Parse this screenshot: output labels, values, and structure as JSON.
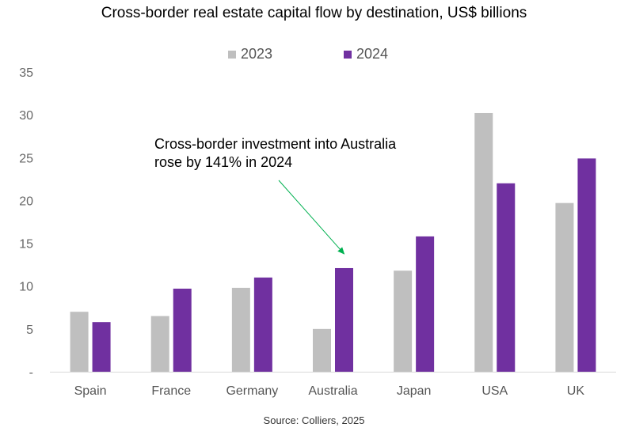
{
  "chart_data": {
    "type": "bar",
    "title": "Cross-border real estate capital flow by destination, US$ billions",
    "categories": [
      "Spain",
      "France",
      "Germany",
      "Australia",
      "Japan",
      "USA",
      "UK"
    ],
    "series": [
      {
        "name": "2023",
        "color": "#BFBFBF",
        "values": [
          7.0,
          6.5,
          9.8,
          5.0,
          11.8,
          30.2,
          19.7
        ]
      },
      {
        "name": "2024",
        "color": "#7030A0",
        "values": [
          5.8,
          9.7,
          11.0,
          12.1,
          15.8,
          22.0,
          24.9
        ]
      }
    ],
    "yticks": [
      "-",
      "5",
      "10",
      "15",
      "20",
      "25",
      "30",
      "35"
    ],
    "ylim": [
      0,
      35
    ],
    "xlabel": "",
    "ylabel": "",
    "legend_position": "top-center",
    "annotation": {
      "lines": [
        "Cross-border investment into Australia",
        "rose by 141% in 2024"
      ],
      "arrow_color": "#00B050",
      "target_category": "Australia"
    },
    "source": "Source: Colliers, 2025"
  }
}
